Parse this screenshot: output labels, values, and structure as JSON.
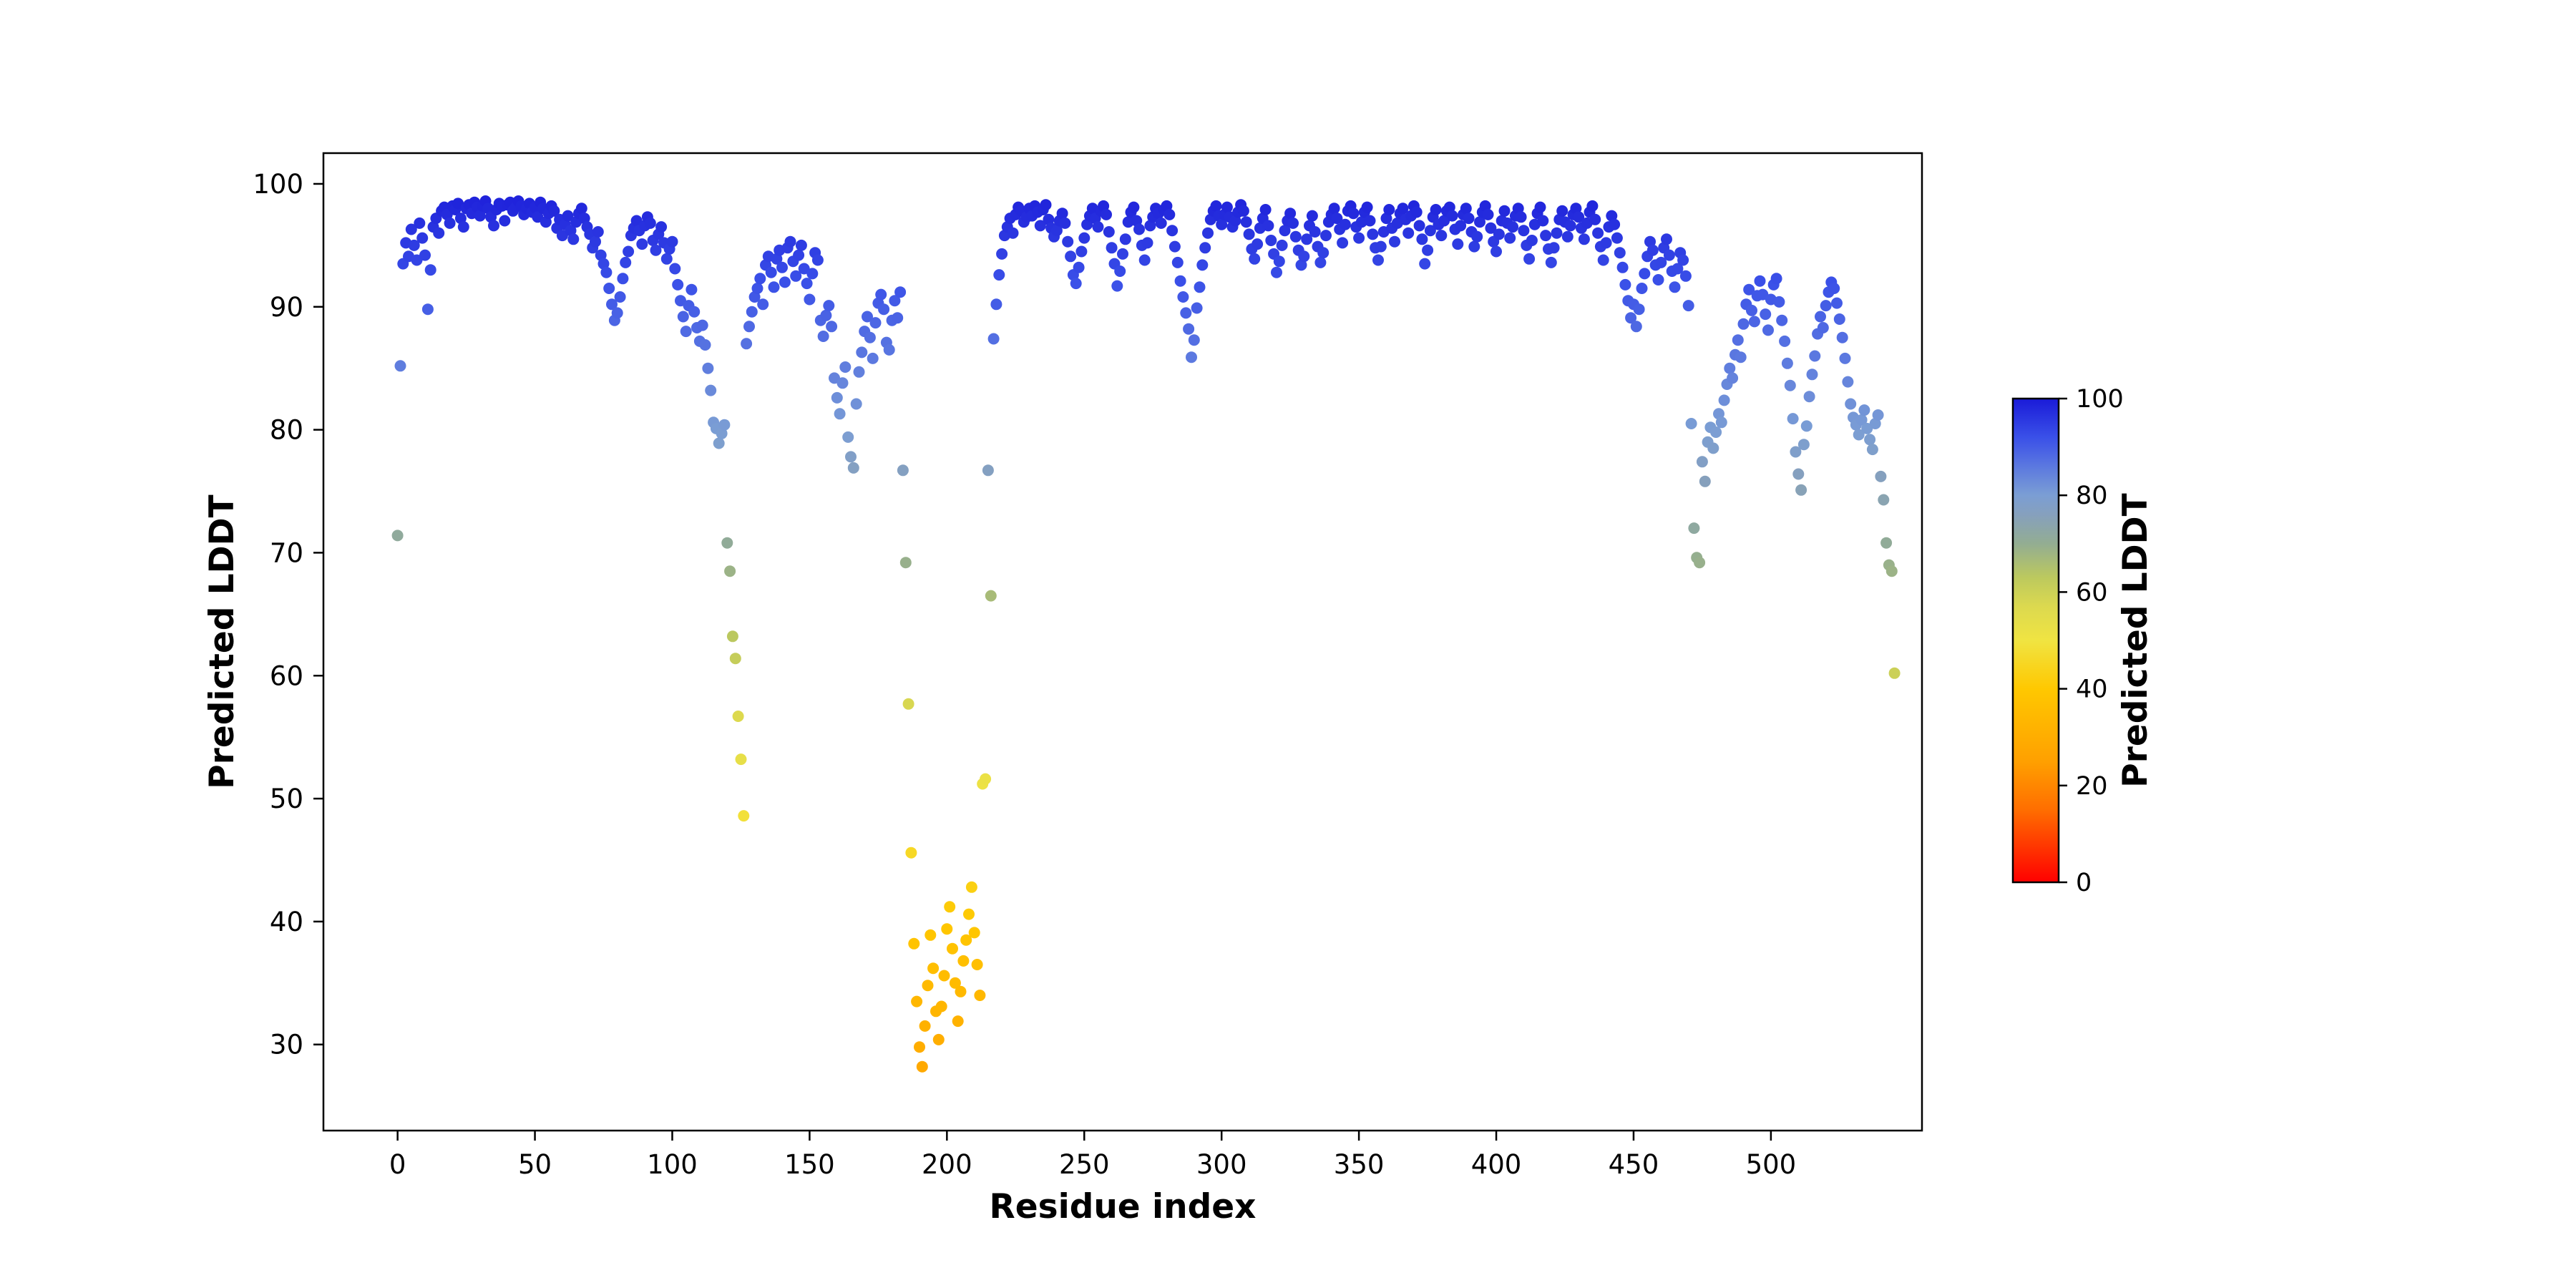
{
  "figure": {
    "background_color": "#ffffff"
  },
  "chart_data": {
    "type": "scatter",
    "title": "",
    "xlabel": "Residue index",
    "ylabel": "Predicted LDDT",
    "xlim": [
      -27,
      555
    ],
    "ylim": [
      23,
      102.5
    ],
    "xticks": [
      0,
      50,
      100,
      150,
      200,
      250,
      300,
      350,
      400,
      450,
      500
    ],
    "yticks": [
      30,
      40,
      50,
      60,
      70,
      80,
      90,
      100
    ],
    "grid": false,
    "legend": "none",
    "marker": {
      "shape": "circle",
      "radius_px": 8
    },
    "x_start": 0,
    "x_step": 1,
    "y": [
      71.4,
      85.2,
      93.5,
      95.2,
      94.1,
      96.3,
      95.0,
      93.8,
      96.8,
      95.6,
      94.2,
      89.8,
      93.0,
      96.5,
      97.2,
      96.0,
      97.8,
      98.1,
      97.5,
      96.8,
      98.2,
      97.9,
      98.4,
      97.2,
      96.5,
      98.0,
      98.3,
      97.6,
      98.5,
      98.1,
      97.4,
      98.2,
      98.6,
      98.0,
      97.3,
      96.6,
      97.9,
      98.4,
      98.2,
      97.0,
      98.3,
      98.5,
      97.8,
      98.1,
      98.6,
      98.2,
      97.5,
      98.0,
      98.4,
      97.7,
      98.1,
      97.3,
      98.5,
      98.0,
      96.9,
      97.6,
      98.2,
      97.8,
      96.4,
      97.1,
      95.8,
      96.7,
      97.4,
      96.2,
      95.5,
      96.9,
      97.6,
      98.0,
      97.2,
      96.5,
      95.9,
      94.8,
      95.3,
      96.1,
      94.2,
      93.5,
      92.8,
      91.5,
      90.2,
      88.9,
      89.5,
      90.8,
      92.3,
      93.6,
      94.5,
      95.8,
      96.4,
      97.0,
      96.2,
      95.1,
      96.6,
      97.3,
      96.8,
      95.4,
      94.6,
      95.9,
      96.5,
      95.2,
      93.9,
      94.7,
      95.3,
      93.1,
      91.8,
      90.5,
      89.2,
      88.0,
      90.1,
      91.4,
      89.6,
      88.3,
      87.2,
      88.5,
      86.9,
      85.0,
      83.2,
      80.6,
      80.1,
      78.9,
      79.7,
      80.4,
      70.8,
      68.5,
      63.2,
      61.4,
      56.7,
      53.2,
      48.6,
      87.0,
      88.4,
      89.6,
      90.8,
      91.5,
      92.3,
      90.2,
      93.4,
      94.1,
      92.8,
      91.6,
      93.9,
      94.6,
      93.2,
      92.0,
      94.8,
      95.3,
      93.7,
      92.5,
      94.2,
      95.0,
      93.1,
      91.9,
      90.6,
      92.7,
      94.4,
      93.8,
      88.9,
      87.6,
      89.3,
      90.1,
      88.4,
      84.2,
      82.6,
      81.3,
      83.8,
      85.1,
      79.4,
      77.8,
      76.9,
      82.1,
      84.7,
      86.3,
      88.0,
      89.2,
      87.5,
      85.8,
      88.7,
      90.3,
      91.0,
      89.8,
      87.1,
      86.5,
      88.9,
      90.5,
      89.1,
      91.2,
      76.7,
      69.2,
      57.7,
      45.6,
      38.2,
      33.5,
      29.8,
      28.2,
      31.5,
      34.8,
      38.9,
      36.2,
      32.7,
      30.4,
      33.1,
      35.6,
      39.4,
      41.2,
      37.8,
      35.0,
      31.9,
      34.3,
      36.8,
      38.5,
      40.6,
      42.8,
      39.1,
      36.5,
      34.0,
      51.2,
      51.6,
      76.7,
      66.5,
      87.4,
      90.2,
      92.6,
      94.3,
      95.8,
      96.5,
      97.2,
      96.0,
      97.5,
      98.1,
      97.8,
      96.9,
      97.3,
      98.0,
      97.4,
      98.2,
      97.7,
      96.6,
      97.9,
      98.3,
      97.1,
      96.4,
      95.7,
      96.2,
      97.0,
      97.6,
      96.8,
      95.3,
      94.1,
      92.6,
      91.9,
      93.2,
      94.5,
      95.6,
      96.7,
      97.4,
      98.0,
      97.2,
      96.5,
      97.8,
      98.2,
      97.5,
      96.1,
      94.8,
      93.5,
      91.7,
      92.9,
      94.3,
      95.5,
      96.9,
      97.7,
      98.1,
      97.0,
      96.3,
      95.0,
      93.8,
      95.2,
      96.6,
      97.3,
      98.0,
      97.6,
      96.8,
      97.9,
      98.2,
      97.5,
      96.2,
      94.9,
      93.6,
      92.1,
      90.8,
      89.5,
      88.2,
      85.9,
      87.3,
      89.9,
      91.6,
      93.4,
      94.8,
      96.0,
      97.1,
      97.8,
      98.2,
      97.4,
      96.7,
      97.5,
      98.1,
      97.3,
      96.5,
      97.0,
      97.7,
      98.3,
      97.8,
      96.9,
      95.9,
      94.7,
      93.9,
      95.1,
      96.4,
      97.2,
      97.9,
      96.6,
      95.4,
      94.3,
      92.8,
      93.7,
      95.0,
      96.2,
      97.0,
      97.6,
      96.8,
      95.7,
      94.6,
      93.4,
      94.1,
      95.5,
      96.6,
      97.4,
      96.1,
      94.9,
      93.6,
      94.4,
      95.8,
      96.9,
      97.5,
      98.0,
      97.2,
      96.3,
      95.2,
      96.7,
      97.8,
      98.2,
      97.6,
      96.5,
      95.6,
      96.9,
      97.7,
      98.1,
      97.0,
      95.9,
      94.8,
      93.8,
      94.9,
      96.1,
      97.2,
      97.9,
      96.4,
      95.3,
      96.8,
      97.6,
      98.0,
      97.1,
      96.0,
      97.4,
      98.2,
      97.7,
      96.6,
      95.5,
      93.5,
      94.6,
      96.2,
      97.3,
      97.9,
      96.7,
      95.8,
      97.0,
      97.8,
      98.1,
      97.4,
      96.3,
      95.1,
      96.6,
      97.5,
      98.0,
      97.2,
      96.1,
      94.9,
      95.7,
      96.9,
      97.7,
      98.2,
      97.5,
      96.4,
      95.3,
      94.5,
      95.9,
      97.0,
      97.8,
      96.8,
      95.6,
      96.5,
      97.4,
      98.0,
      97.3,
      96.2,
      95.0,
      93.9,
      95.4,
      96.7,
      97.6,
      98.1,
      97.0,
      95.8,
      94.7,
      93.6,
      94.8,
      96.0,
      97.1,
      97.8,
      96.9,
      95.7,
      96.6,
      97.5,
      98.0,
      97.3,
      96.4,
      95.5,
      96.8,
      97.7,
      98.2,
      97.1,
      96.0,
      94.9,
      93.8,
      95.2,
      96.5,
      97.4,
      96.7,
      95.6,
      94.4,
      93.2,
      91.8,
      90.5,
      89.1,
      90.2,
      88.4,
      89.8,
      91.5,
      92.7,
      94.1,
      95.3,
      94.6,
      93.4,
      92.2,
      93.6,
      94.8,
      95.5,
      94.2,
      92.9,
      91.6,
      93.1,
      94.4,
      93.8,
      92.5,
      90.1,
      80.5,
      72.0,
      69.6,
      69.2,
      77.4,
      75.8,
      79.0,
      80.2,
      78.5,
      79.8,
      81.3,
      80.6,
      82.4,
      83.7,
      85.0,
      84.2,
      86.1,
      87.3,
      85.9,
      88.6,
      90.2,
      91.4,
      89.7,
      88.8,
      90.9,
      92.1,
      91.0,
      89.4,
      88.1,
      90.6,
      91.8,
      92.3,
      90.4,
      88.9,
      87.2,
      85.4,
      83.6,
      80.9,
      78.2,
      76.4,
      75.1,
      78.8,
      80.3,
      82.7,
      84.5,
      86.0,
      87.8,
      89.2,
      88.3,
      90.1,
      91.2,
      92.0,
      91.5,
      90.3,
      89.0,
      87.5,
      85.8,
      83.9,
      82.1,
      81.0,
      80.4,
      79.6,
      80.8,
      81.6,
      80.1,
      79.2,
      78.4,
      80.5,
      81.2,
      76.2,
      74.3,
      70.8,
      69.0,
      68.5,
      60.2
    ],
    "colormap": {
      "name": "red-orange-yellow-green-blue",
      "stops": [
        [
          0,
          "#ff0000"
        ],
        [
          15,
          "#ff6e00"
        ],
        [
          25,
          "#ffa000"
        ],
        [
          40,
          "#ffc800"
        ],
        [
          50,
          "#f0e442"
        ],
        [
          57,
          "#dcd94f"
        ],
        [
          63,
          "#bcc95e"
        ],
        [
          70,
          "#93ad92"
        ],
        [
          76,
          "#86a0bd"
        ],
        [
          80,
          "#7b9ed4"
        ],
        [
          86,
          "#5b78e0"
        ],
        [
          92,
          "#3a50e8"
        ],
        [
          100,
          "#1a1ad8"
        ]
      ]
    },
    "colorbar": {
      "label": "Predicted LDDT",
      "ticks": [
        0,
        20,
        40,
        60,
        80,
        100
      ],
      "min": 0,
      "max": 100
    }
  }
}
